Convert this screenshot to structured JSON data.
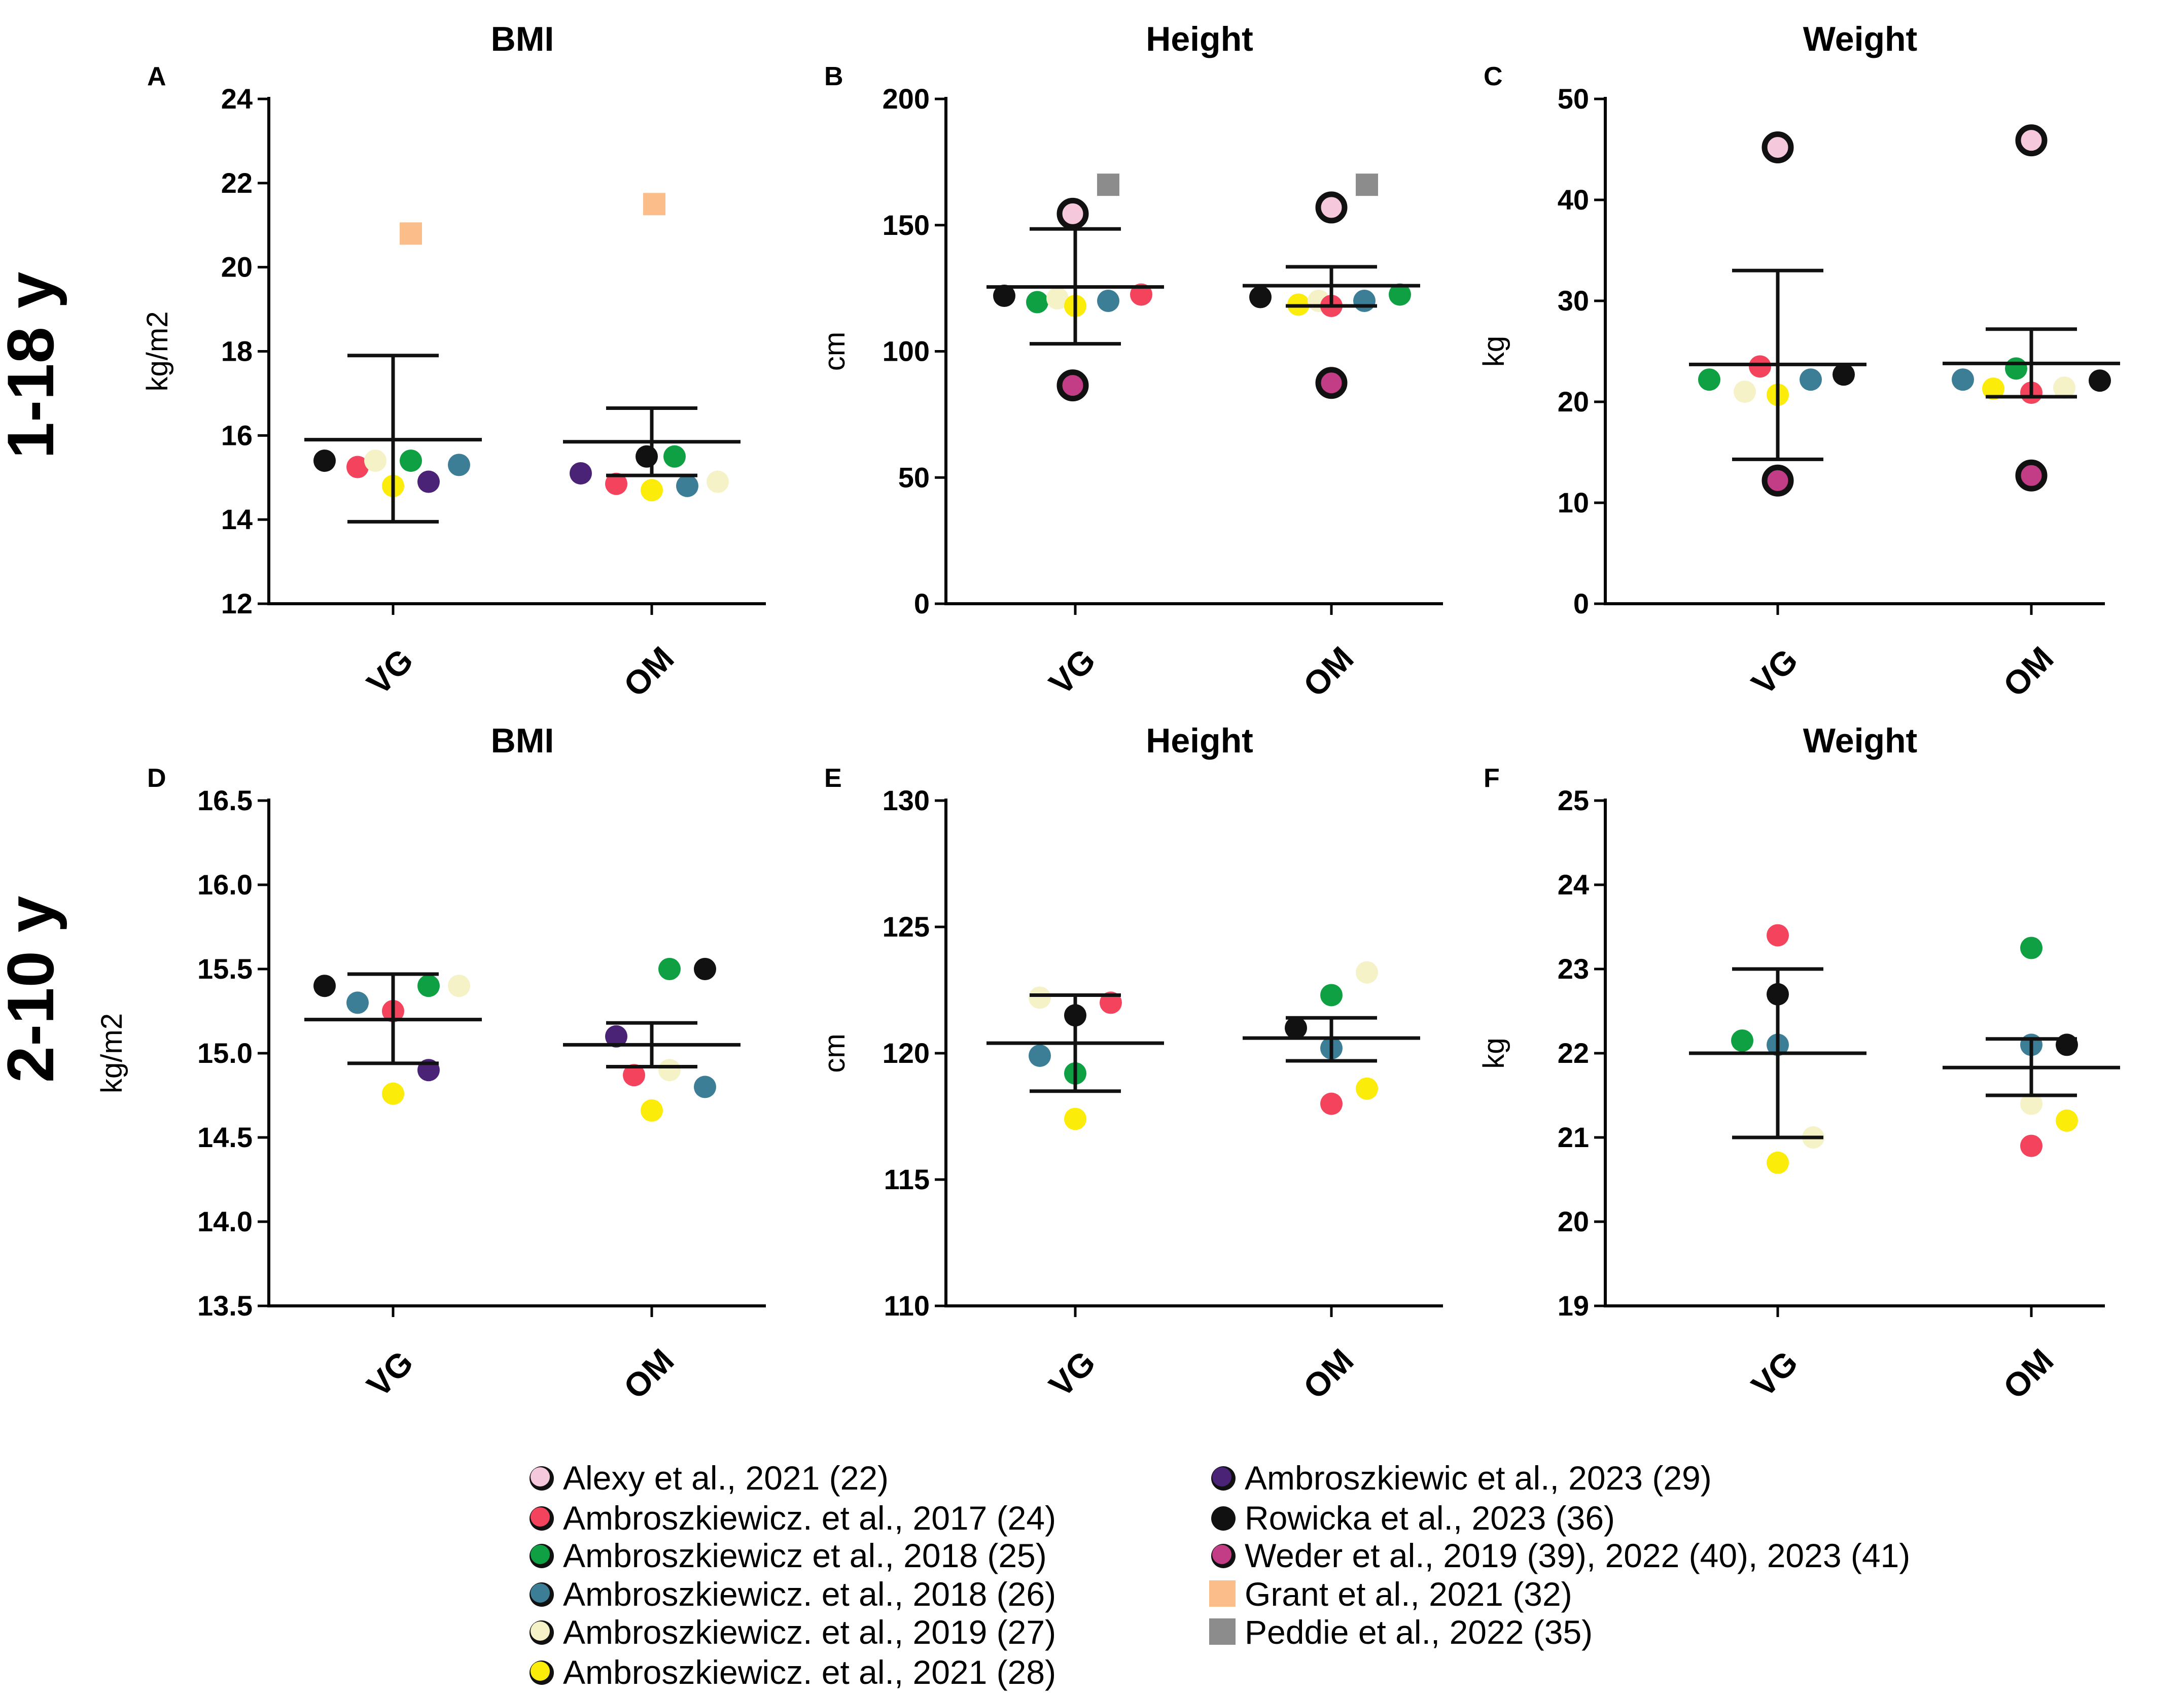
{
  "row_labels": [
    "1-18 y",
    "2-10 y"
  ],
  "legend": [
    {
      "label": "Alexy et al., 2021 (22)",
      "color": "#f6c8dc",
      "shape": "circle"
    },
    {
      "label": "Ambroszkiewicz. et al., 2017 (24)",
      "color": "#f4435d",
      "shape": "circle"
    },
    {
      "label": "Ambroszkiewicz et al., 2018 (25)",
      "color": "#10a044",
      "shape": "circle"
    },
    {
      "label": "Ambroszkiewicz. et al., 2018 (26)",
      "color": "#3c7e96",
      "shape": "circle"
    },
    {
      "label": "Ambroszkiewicz. et al., 2019 (27)",
      "color": "#f5f2c8",
      "shape": "circle"
    },
    {
      "label": "Ambroszkiewicz. et al., 2021 (28)",
      "color": "#fbec0a",
      "shape": "circle"
    },
    {
      "label": "Ambroszkiewic et al., 2023 (29)",
      "color": "#4a2276",
      "shape": "circle"
    },
    {
      "label": "Rowicka et al., 2023 (36)",
      "color": "#111111",
      "shape": "circle"
    },
    {
      "label": "Weder et al., 2019 (39), 2022 (40), 2023 (41)",
      "color": "#c23c86",
      "shape": "circle"
    },
    {
      "label": "Grant et al., 2021 (32)",
      "color": "#fbbd8a",
      "shape": "square"
    },
    {
      "label": "Peddie et al., 2022 (35)",
      "color": "#8c8c8c",
      "shape": "square"
    }
  ],
  "chart_data": [
    {
      "panel": "A",
      "type": "scatter",
      "title": "BMI",
      "ylabel": "kg/m2",
      "row": "1-18 y",
      "categories": [
        "VG",
        "OM"
      ],
      "ylim": [
        12,
        24
      ],
      "yticks": [
        "12",
        "14",
        "16",
        "18",
        "20",
        "22",
        "24"
      ],
      "ytick_values": [
        12,
        14,
        16,
        18,
        20,
        22,
        24
      ],
      "summary": [
        {
          "category": "VG",
          "mean": 15.9,
          "lower": 13.95,
          "upper": 17.9
        },
        {
          "category": "OM",
          "mean": 15.85,
          "lower": 15.05,
          "upper": 16.65
        }
      ],
      "points": [
        {
          "category": "VG",
          "study": "Rowicka et al., 2023 (36)",
          "value": 15.4
        },
        {
          "category": "VG",
          "study": "Ambroszkiewicz. et al., 2017 (24)",
          "value": 15.25
        },
        {
          "category": "VG",
          "study": "Ambroszkiewicz. et al., 2019 (27)",
          "value": 15.4
        },
        {
          "category": "VG",
          "study": "Ambroszkiewicz. et al., 2021 (28)",
          "value": 14.8
        },
        {
          "category": "VG",
          "study": "Ambroszkiewicz et al., 2018 (25)",
          "value": 15.4
        },
        {
          "category": "VG",
          "study": "Ambroszkiewic et al., 2023 (29)",
          "value": 14.9
        },
        {
          "category": "VG",
          "study": "Ambroszkiewicz. et al., 2018 (26)",
          "value": 15.3
        },
        {
          "category": "VG",
          "study": "Grant et al., 2021 (32)",
          "value": 20.8
        },
        {
          "category": "OM",
          "study": "Ambroszkiewic et al., 2023 (29)",
          "value": 15.1
        },
        {
          "category": "OM",
          "study": "Ambroszkiewicz. et al., 2017 (24)",
          "value": 14.85
        },
        {
          "category": "OM",
          "study": "Rowicka et al., 2023 (36)",
          "value": 15.5
        },
        {
          "category": "OM",
          "study": "Ambroszkiewicz. et al., 2021 (28)",
          "value": 14.7
        },
        {
          "category": "OM",
          "study": "Ambroszkiewicz et al., 2018 (25)",
          "value": 15.5
        },
        {
          "category": "OM",
          "study": "Ambroszkiewicz. et al., 2018 (26)",
          "value": 14.8
        },
        {
          "category": "OM",
          "study": "Ambroszkiewicz. et al., 2019 (27)",
          "value": 14.9
        },
        {
          "category": "OM",
          "study": "Grant et al., 2021 (32)",
          "value": 21.5
        }
      ]
    },
    {
      "panel": "B",
      "type": "scatter",
      "title": "Height",
      "ylabel": "cm",
      "row": "1-18 y",
      "categories": [
        "VG",
        "OM"
      ],
      "ylim": [
        0,
        200
      ],
      "yticks": [
        "0",
        "50",
        "100",
        "150",
        "200"
      ],
      "ytick_values": [
        0,
        50,
        100,
        150,
        200
      ],
      "summary": [
        {
          "category": "VG",
          "mean": 125.5,
          "lower": 103,
          "upper": 148.5
        },
        {
          "category": "OM",
          "mean": 126,
          "lower": 118,
          "upper": 133.5
        }
      ],
      "points": [
        {
          "category": "VG",
          "study": "Rowicka et al., 2023 (36)",
          "value": 122
        },
        {
          "category": "VG",
          "study": "Ambroszkiewicz et al., 2018 (25)",
          "value": 119.5
        },
        {
          "category": "VG",
          "study": "Ambroszkiewicz. et al., 2019 (27)",
          "value": 121
        },
        {
          "category": "VG",
          "study": "Ambroszkiewicz. et al., 2021 (28)",
          "value": 118
        },
        {
          "category": "VG",
          "study": "Ambroszkiewicz. et al., 2018 (26)",
          "value": 120
        },
        {
          "category": "VG",
          "study": "Ambroszkiewicz. et al., 2017 (24)",
          "value": 122.5
        },
        {
          "category": "VG",
          "study": "Alexy et al., 2021 (22)",
          "value": 154.5
        },
        {
          "category": "VG",
          "study": "Weder et al., 2019 (39), 2022 (40), 2023 (41)",
          "value": 86.5
        },
        {
          "category": "VG",
          "study": "Peddie et al., 2022 (35)",
          "value": 166
        },
        {
          "category": "OM",
          "study": "Rowicka et al., 2023 (36)",
          "value": 121.5
        },
        {
          "category": "OM",
          "study": "Ambroszkiewicz. et al., 2021 (28)",
          "value": 118.5
        },
        {
          "category": "OM",
          "study": "Ambroszkiewicz. et al., 2019 (27)",
          "value": 120
        },
        {
          "category": "OM",
          "study": "Ambroszkiewicz. et al., 2017 (24)",
          "value": 118
        },
        {
          "category": "OM",
          "study": "Ambroszkiewicz. et al., 2018 (26)",
          "value": 120
        },
        {
          "category": "OM",
          "study": "Ambroszkiewicz et al., 2018 (25)",
          "value": 122.5
        },
        {
          "category": "OM",
          "study": "Alexy et al., 2021 (22)",
          "value": 157
        },
        {
          "category": "OM",
          "study": "Weder et al., 2019 (39), 2022 (40), 2023 (41)",
          "value": 87.5
        },
        {
          "category": "OM",
          "study": "Peddie et al., 2022 (35)",
          "value": 166
        }
      ]
    },
    {
      "panel": "C",
      "type": "scatter",
      "title": "Weight",
      "ylabel": "kg",
      "row": "1-18 y",
      "categories": [
        "VG",
        "OM"
      ],
      "ylim": [
        0,
        50
      ],
      "yticks": [
        "0",
        "10",
        "20",
        "30",
        "40",
        "50"
      ],
      "ytick_values": [
        0,
        10,
        20,
        30,
        40,
        50
      ],
      "summary": [
        {
          "category": "VG",
          "mean": 23.7,
          "lower": 14.3,
          "upper": 33
        },
        {
          "category": "OM",
          "mean": 23.8,
          "lower": 20.5,
          "upper": 27.2
        }
      ],
      "points": [
        {
          "category": "VG",
          "study": "Ambroszkiewicz et al., 2018 (25)",
          "value": 22.2
        },
        {
          "category": "VG",
          "study": "Ambroszkiewicz. et al., 2019 (27)",
          "value": 21
        },
        {
          "category": "VG",
          "study": "Ambroszkiewicz. et al., 2017 (24)",
          "value": 23.5
        },
        {
          "category": "VG",
          "study": "Ambroszkiewicz. et al., 2021 (28)",
          "value": 20.7
        },
        {
          "category": "VG",
          "study": "Ambroszkiewicz. et al., 2018 (26)",
          "value": 22.2
        },
        {
          "category": "VG",
          "study": "Rowicka et al., 2023 (36)",
          "value": 22.7
        },
        {
          "category": "VG",
          "study": "Alexy et al., 2021 (22)",
          "value": 45.2
        },
        {
          "category": "VG",
          "study": "Weder et al., 2019 (39), 2022 (40), 2023 (41)",
          "value": 12.2
        },
        {
          "category": "OM",
          "study": "Ambroszkiewicz. et al., 2018 (26)",
          "value": 22.2
        },
        {
          "category": "OM",
          "study": "Ambroszkiewicz. et al., 2021 (28)",
          "value": 21.3
        },
        {
          "category": "OM",
          "study": "Ambroszkiewicz et al., 2018 (25)",
          "value": 23.3
        },
        {
          "category": "OM",
          "study": "Ambroszkiewicz. et al., 2017 (24)",
          "value": 20.9
        },
        {
          "category": "OM",
          "study": "Ambroszkiewicz. et al., 2019 (27)",
          "value": 21.4
        },
        {
          "category": "OM",
          "study": "Rowicka et al., 2023 (36)",
          "value": 22.1
        },
        {
          "category": "OM",
          "study": "Alexy et al., 2021 (22)",
          "value": 45.9
        },
        {
          "category": "OM",
          "study": "Weder et al., 2019 (39), 2022 (40), 2023 (41)",
          "value": 12.7
        }
      ]
    },
    {
      "panel": "D",
      "type": "scatter",
      "title": "BMI",
      "ylabel": "kg/m2",
      "row": "2-10 y",
      "categories": [
        "VG",
        "OM"
      ],
      "ylim": [
        13.5,
        16.5
      ],
      "yticks": [
        "13.5",
        "14.0",
        "14.5",
        "15.0",
        "15.5",
        "16.0",
        "16.5"
      ],
      "ytick_values": [
        13.5,
        14.0,
        14.5,
        15.0,
        15.5,
        16.0,
        16.5
      ],
      "summary": [
        {
          "category": "VG",
          "mean": 15.2,
          "lower": 14.94,
          "upper": 15.47
        },
        {
          "category": "OM",
          "mean": 15.05,
          "lower": 14.92,
          "upper": 15.18
        }
      ],
      "points": [
        {
          "category": "VG",
          "study": "Rowicka et al., 2023 (36)",
          "value": 15.4
        },
        {
          "category": "VG",
          "study": "Ambroszkiewicz. et al., 2018 (26)",
          "value": 15.3
        },
        {
          "category": "VG",
          "study": "Ambroszkiewicz. et al., 2021 (28)",
          "value": 14.76
        },
        {
          "category": "VG",
          "study": "Ambroszkiewicz. et al., 2017 (24)",
          "value": 15.25
        },
        {
          "category": "VG",
          "study": "Ambroszkiewic et al., 2023 (29)",
          "value": 14.9
        },
        {
          "category": "VG",
          "study": "Ambroszkiewicz et al., 2018 (25)",
          "value": 15.4
        },
        {
          "category": "VG",
          "study": "Ambroszkiewicz. et al., 2019 (27)",
          "value": 15.4
        },
        {
          "category": "OM",
          "study": "Ambroszkiewic et al., 2023 (29)",
          "value": 15.1
        },
        {
          "category": "OM",
          "study": "Ambroszkiewicz. et al., 2017 (24)",
          "value": 14.87
        },
        {
          "category": "OM",
          "study": "Ambroszkiewicz. et al., 2021 (28)",
          "value": 14.66
        },
        {
          "category": "OM",
          "study": "Ambroszkiewicz. et al., 2019 (27)",
          "value": 14.9
        },
        {
          "category": "OM",
          "study": "Ambroszkiewicz et al., 2018 (25)",
          "value": 15.5
        },
        {
          "category": "OM",
          "study": "Rowicka et al., 2023 (36)",
          "value": 15.5
        },
        {
          "category": "OM",
          "study": "Ambroszkiewicz. et al., 2018 (26)",
          "value": 14.8
        }
      ]
    },
    {
      "panel": "E",
      "type": "scatter",
      "title": "Height",
      "ylabel": "cm",
      "row": "2-10 y",
      "categories": [
        "VG",
        "OM"
      ],
      "ylim": [
        110,
        130
      ],
      "yticks": [
        "110",
        "115",
        "120",
        "125",
        "130"
      ],
      "ytick_values": [
        110,
        115,
        120,
        125,
        130
      ],
      "summary": [
        {
          "category": "VG",
          "mean": 120.4,
          "lower": 118.5,
          "upper": 122.3
        },
        {
          "category": "OM",
          "mean": 120.6,
          "lower": 119.7,
          "upper": 121.4
        }
      ],
      "points": [
        {
          "category": "VG",
          "study": "Ambroszkiewicz. et al., 2019 (27)",
          "value": 122.2
        },
        {
          "category": "VG",
          "study": "Ambroszkiewicz. et al., 2018 (26)",
          "value": 119.9
        },
        {
          "category": "VG",
          "study": "Rowicka et al., 2023 (36)",
          "value": 121.5
        },
        {
          "category": "VG",
          "study": "Ambroszkiewicz et al., 2018 (25)",
          "value": 119.2
        },
        {
          "category": "VG",
          "study": "Ambroszkiewicz. et al., 2021 (28)",
          "value": 117.4
        },
        {
          "category": "VG",
          "study": "Ambroszkiewicz. et al., 2017 (24)",
          "value": 122
        },
        {
          "category": "OM",
          "study": "Rowicka et al., 2023 (36)",
          "value": 121
        },
        {
          "category": "OM",
          "study": "Ambroszkiewicz et al., 2018 (25)",
          "value": 122.3
        },
        {
          "category": "OM",
          "study": "Ambroszkiewicz. et al., 2018 (26)",
          "value": 120.2
        },
        {
          "category": "OM",
          "study": "Ambroszkiewicz. et al., 2017 (24)",
          "value": 118
        },
        {
          "category": "OM",
          "study": "Ambroszkiewicz. et al., 2019 (27)",
          "value": 123.2
        },
        {
          "category": "OM",
          "study": "Ambroszkiewicz. et al., 2021 (28)",
          "value": 118.6
        }
      ]
    },
    {
      "panel": "F",
      "type": "scatter",
      "title": "Weight",
      "ylabel": "kg",
      "row": "2-10 y",
      "categories": [
        "VG",
        "OM"
      ],
      "ylim": [
        19,
        25
      ],
      "yticks": [
        "19",
        "20",
        "21",
        "22",
        "23",
        "24",
        "25"
      ],
      "ytick_values": [
        19,
        20,
        21,
        22,
        23,
        24,
        25
      ],
      "summary": [
        {
          "category": "VG",
          "mean": 22,
          "lower": 21,
          "upper": 23
        },
        {
          "category": "OM",
          "mean": 21.83,
          "lower": 21.5,
          "upper": 22.17
        }
      ],
      "points": [
        {
          "category": "VG",
          "study": "Ambroszkiewicz et al., 2018 (25)",
          "value": 22.15
        },
        {
          "category": "VG",
          "study": "Ambroszkiewicz. et al., 2017 (24)",
          "value": 23.4
        },
        {
          "category": "VG",
          "study": "Rowicka et al., 2023 (36)",
          "value": 22.7
        },
        {
          "category": "VG",
          "study": "Ambroszkiewicz. et al., 2018 (26)",
          "value": 22.1
        },
        {
          "category": "VG",
          "study": "Ambroszkiewicz. et al., 2021 (28)",
          "value": 20.7
        },
        {
          "category": "VG",
          "study": "Ambroszkiewicz. et al., 2019 (27)",
          "value": 21
        },
        {
          "category": "OM",
          "study": "Ambroszkiewicz et al., 2018 (25)",
          "value": 23.25
        },
        {
          "category": "OM",
          "study": "Ambroszkiewicz. et al., 2018 (26)",
          "value": 22.1
        },
        {
          "category": "OM",
          "study": "Ambroszkiewicz. et al., 2019 (27)",
          "value": 21.4
        },
        {
          "category": "OM",
          "study": "Ambroszkiewicz. et al., 2017 (24)",
          "value": 20.9
        },
        {
          "category": "OM",
          "study": "Rowicka et al., 2023 (36)",
          "value": 22.1
        },
        {
          "category": "OM",
          "study": "Ambroszkiewicz. et al., 2021 (28)",
          "value": 21.2
        }
      ]
    }
  ]
}
